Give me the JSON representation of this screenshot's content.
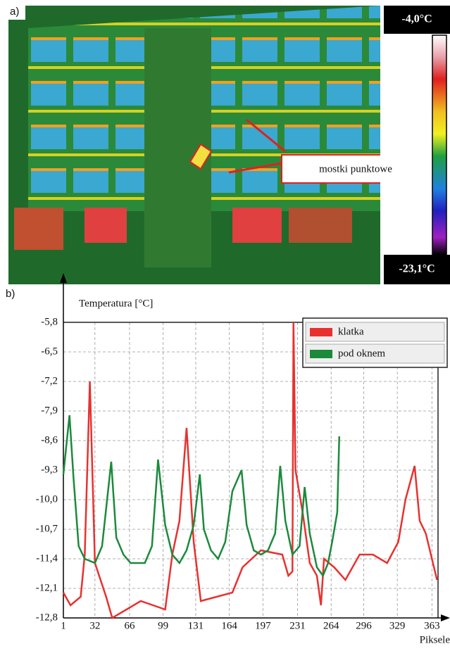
{
  "figure": {
    "label_a": "a)",
    "label_b": "b)",
    "scale_max": "-4,0°C",
    "scale_min": "-23,1°C",
    "annotation": "mostki punktowe"
  },
  "chart_data": {
    "type": "line",
    "y_label": "Temperatura [°C]",
    "x_label": "Piksele",
    "xlim": [
      1,
      369
    ],
    "ylim": [
      -12.8,
      -5.8
    ],
    "xticks": [
      1,
      32,
      66,
      99,
      131,
      164,
      197,
      231,
      264,
      296,
      329,
      363
    ],
    "yticks": [
      {
        "value": -5.8,
        "label": "-5,8"
      },
      {
        "value": -6.5,
        "label": "-6,5"
      },
      {
        "value": -7.2,
        "label": "-7,2"
      },
      {
        "value": -7.9,
        "label": "-7,9"
      },
      {
        "value": -8.6,
        "label": "-8,6"
      },
      {
        "value": -9.3,
        "label": "-9,3"
      },
      {
        "value": -10.0,
        "label": "-10,0"
      },
      {
        "value": -10.7,
        "label": "-10,7"
      },
      {
        "value": -11.4,
        "label": "-11,4"
      },
      {
        "value": -12.1,
        "label": "-12,1"
      },
      {
        "value": -12.8,
        "label": "-12,8"
      }
    ],
    "grid": true,
    "legend": "top-right",
    "series": [
      {
        "name": "klatka",
        "color": "#e8312f",
        "x": [
          1,
          8,
          18,
          22,
          27,
          32,
          43,
          49,
          77,
          101,
          108,
          115,
          122,
          129,
          136,
          167,
          177,
          195,
          216,
          222,
          226,
          227,
          229,
          236,
          243,
          250,
          254,
          257,
          267,
          278,
          292,
          305,
          319,
          330,
          337,
          346,
          351,
          357,
          364,
          368
        ],
        "values": [
          -12.2,
          -12.5,
          -12.3,
          -11.3,
          -7.2,
          -11.5,
          -12.3,
          -12.8,
          -12.4,
          -12.6,
          -11.3,
          -10.5,
          -8.3,
          -11.0,
          -12.4,
          -12.2,
          -11.6,
          -11.2,
          -11.3,
          -11.8,
          -11.7,
          -5.8,
          -9.3,
          -10.3,
          -11.5,
          -11.8,
          -12.5,
          -11.4,
          -11.6,
          -11.9,
          -11.3,
          -11.3,
          -11.5,
          -11.0,
          -10.0,
          -9.2,
          -10.5,
          -10.8,
          -11.5,
          -11.9
        ]
      },
      {
        "name": "pod oknem",
        "color": "#1b8a3c",
        "x": [
          1,
          7,
          11,
          16,
          22,
          32,
          39,
          48,
          53,
          60,
          67,
          81,
          88,
          94,
          101,
          108,
          115,
          122,
          129,
          135,
          139,
          146,
          153,
          160,
          167,
          176,
          181,
          188,
          195,
          202,
          209,
          214,
          219,
          226,
          233,
          238,
          243,
          250,
          256,
          261,
          265,
          270,
          272
        ],
        "values": [
          -9.4,
          -8.0,
          -9.5,
          -11.1,
          -11.4,
          -11.5,
          -11.1,
          -9.1,
          -10.9,
          -11.3,
          -11.5,
          -11.5,
          -11.1,
          -9.05,
          -10.6,
          -11.3,
          -11.5,
          -11.2,
          -10.6,
          -9.4,
          -10.7,
          -11.2,
          -11.4,
          -11.0,
          -9.8,
          -9.3,
          -10.6,
          -11.2,
          -11.3,
          -11.2,
          -10.8,
          -9.2,
          -10.5,
          -11.3,
          -11.1,
          -9.7,
          -10.8,
          -11.6,
          -11.8,
          -11.5,
          -11.0,
          -10.3,
          -8.5
        ]
      }
    ]
  }
}
